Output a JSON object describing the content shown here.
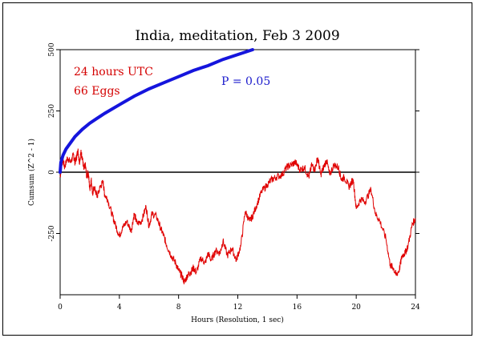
{
  "chart_data": {
    "type": "line",
    "title": "India, meditation, Feb 3 2009",
    "xlabel": "Hours (Resolution, 1 sec)",
    "ylabel": "Cumsum (Z^2 - 1)",
    "xlim": [
      0,
      24
    ],
    "ylim": [
      -500,
      500
    ],
    "x_ticks": [
      0,
      4,
      8,
      12,
      16,
      20,
      24
    ],
    "y_ticks": [
      -250,
      0,
      250,
      500
    ],
    "y_tick_labels": [
      "-250",
      "0",
      "250",
      "500"
    ],
    "annotations": {
      "hours": "24 hours UTC",
      "eggs": "66 Eggs",
      "p_value": "P = 0.05"
    },
    "colors": {
      "cumsum": "#e00000",
      "envelope": "#1515dd",
      "baseline": "#000000"
    },
    "series": [
      {
        "color": "#e00000",
        "x": [
          0,
          0.1,
          0.2,
          0.3,
          0.5,
          0.7,
          0.9,
          1.0,
          1.1,
          1.2,
          1.3,
          1.4,
          1.5,
          1.6,
          1.7,
          1.8,
          1.9,
          2.0,
          2.1,
          2.2,
          2.3,
          2.5,
          2.7,
          2.9,
          3.0,
          3.2,
          3.5,
          3.7,
          4.0,
          4.2,
          4.5,
          4.8,
          5.0,
          5.2,
          5.5,
          5.8,
          6.0,
          6.2,
          6.5,
          6.8,
          7.0,
          7.2,
          7.5,
          7.8,
          8.0,
          8.2,
          8.4,
          8.6,
          8.8,
          9.0,
          9.2,
          9.5,
          9.8,
          10.0,
          10.2,
          10.5,
          10.8,
          11.0,
          11.3,
          11.6,
          11.9,
          12.2,
          12.5,
          12.8,
          13.0,
          13.3,
          13.6,
          14.0,
          14.3,
          14.6,
          15.0,
          15.3,
          15.6,
          15.9,
          16.2,
          16.5,
          16.8,
          17.0,
          17.2,
          17.4,
          17.6,
          17.8,
          18.0,
          18.2,
          18.5,
          18.8,
          19.0,
          19.2,
          19.5,
          19.8,
          20.0,
          20.3,
          20.6,
          21.0,
          21.3,
          21.6,
          22.0,
          22.3,
          22.5,
          22.7,
          22.9,
          23.1,
          23.3,
          23.5,
          23.8,
          24.0
        ],
        "values": [
          -20,
          30,
          50,
          20,
          60,
          40,
          70,
          40,
          60,
          90,
          40,
          80,
          60,
          10,
          30,
          -20,
          0,
          -70,
          -30,
          -90,
          -60,
          -100,
          -60,
          -40,
          -90,
          -110,
          -170,
          -210,
          -260,
          -230,
          -200,
          -240,
          -170,
          -210,
          -200,
          -140,
          -220,
          -170,
          -180,
          -230,
          -260,
          -300,
          -340,
          -370,
          -400,
          -420,
          -450,
          -420,
          -410,
          -390,
          -410,
          -350,
          -370,
          -330,
          -360,
          -320,
          -330,
          -280,
          -340,
          -310,
          -360,
          -300,
          -160,
          -200,
          -180,
          -130,
          -80,
          -50,
          -30,
          -20,
          -10,
          20,
          30,
          40,
          10,
          20,
          -20,
          30,
          10,
          60,
          -10,
          20,
          50,
          -10,
          30,
          20,
          -30,
          -20,
          -60,
          -30,
          -150,
          -110,
          -120,
          -70,
          -170,
          -200,
          -270,
          -380,
          -390,
          -420,
          -400,
          -340,
          -330,
          -300,
          -210,
          -190
        ]
      },
      {
        "color": "#1515dd",
        "x": [
          0,
          0.05,
          0.2,
          0.4,
          0.7,
          1.0,
          1.5,
          2.0,
          2.5,
          3.0,
          4.0,
          5.0,
          6.0,
          7.0,
          8.0,
          9.0,
          10.0,
          11.0,
          12.0,
          13.0
        ],
        "values": [
          0,
          40,
          70,
          95,
          120,
          145,
          175,
          200,
          220,
          240,
          275,
          310,
          340,
          365,
          390,
          415,
          435,
          460,
          480,
          500
        ]
      }
    ]
  }
}
